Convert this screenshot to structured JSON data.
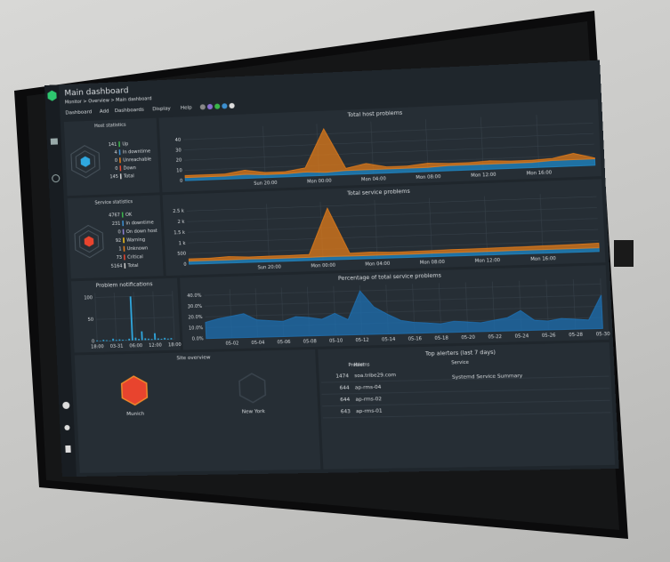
{
  "header": {
    "title": "Main dashboard",
    "breadcrumb": "Monitor > Overview > Main dashboard",
    "menu": [
      "Dashboard",
      "Add",
      "Dashboards",
      "Display",
      "Help"
    ]
  },
  "host_statistics": {
    "title": "Host statistics",
    "rows": [
      {
        "count": 141,
        "label": "Up",
        "color": "#3bb54a"
      },
      {
        "count": 4,
        "label": "In downtime",
        "color": "#3c8fd0"
      },
      {
        "count": 0,
        "label": "Unreachable",
        "color": "#e07b1a"
      },
      {
        "count": 0,
        "label": "Down",
        "color": "#e8442e"
      },
      {
        "count": 145,
        "label": "Total",
        "color": "#cccccc"
      }
    ]
  },
  "service_statistics": {
    "title": "Service statistics",
    "rows": [
      {
        "count": 4767,
        "label": "OK",
        "color": "#3bb54a"
      },
      {
        "count": 231,
        "label": "In downtime",
        "color": "#3c8fd0"
      },
      {
        "count": 0,
        "label": "On down host",
        "color": "#8a7fd0"
      },
      {
        "count": 92,
        "label": "Warning",
        "color": "#f2c21b"
      },
      {
        "count": 1,
        "label": "Unknown",
        "color": "#e07b1a"
      },
      {
        "count": 73,
        "label": "Critical",
        "color": "#e8442e"
      },
      {
        "count": 5164,
        "label": "Total",
        "color": "#cccccc"
      }
    ]
  },
  "chart_data": [
    {
      "type": "area",
      "title": "Total host problems",
      "x": [
        0,
        1.5,
        3,
        4.5,
        6,
        7.5,
        9,
        10.5,
        12,
        13.5,
        15,
        16.5,
        18,
        19.5,
        21,
        22.5,
        24,
        25.5,
        27,
        28.5,
        30
      ],
      "series": [
        {
          "color": "#1e88c8",
          "values": [
            3,
            3,
            3,
            4,
            3,
            3,
            4,
            3,
            4,
            4,
            4,
            4,
            4,
            5,
            5,
            5,
            5,
            5,
            6,
            6,
            6
          ]
        },
        {
          "color": "#e07b1a",
          "values": [
            2,
            2,
            2,
            4,
            2,
            2,
            4,
            42,
            2,
            6,
            2,
            2,
            4,
            2,
            2,
            3,
            2,
            2,
            2,
            6,
            1
          ]
        }
      ],
      "xlim": [
        0,
        30
      ],
      "ylim": [
        0,
        50
      ],
      "yticks": [
        0,
        10,
        20,
        30,
        40
      ],
      "xticks": [
        {
          "value": 6,
          "label": "Sun 20:00"
        },
        {
          "value": 10,
          "label": "Mon 00:00"
        },
        {
          "value": 14,
          "label": "Mon 04:00"
        },
        {
          "value": 18,
          "label": "Mon 08:00"
        },
        {
          "value": 22,
          "label": "Mon 12:00"
        },
        {
          "value": 26,
          "label": "Mon 16:00"
        }
      ],
      "grid": true
    },
    {
      "type": "area",
      "title": "Total service problems",
      "x": [
        0,
        1.5,
        3,
        4.5,
        6,
        7.5,
        9,
        10.5,
        12,
        13.5,
        15,
        16.5,
        18,
        19.5,
        21,
        22.5,
        24,
        25.5,
        27,
        28.5,
        30
      ],
      "series": [
        {
          "color": "#1e88c8",
          "values": [
            150,
            150,
            150,
            160,
            150,
            150,
            150,
            160,
            150,
            150,
            150,
            150,
            160,
            160,
            160,
            160,
            170,
            170,
            170,
            170,
            170
          ]
        },
        {
          "color": "#e07b1a",
          "values": [
            100,
            100,
            150,
            90,
            110,
            110,
            130,
            2240,
            130,
            150,
            110,
            120,
            120,
            140,
            140,
            150,
            150,
            160,
            170,
            190,
            210
          ]
        }
      ],
      "xlim": [
        0,
        30
      ],
      "ylim": [
        0,
        2700
      ],
      "yticks": [
        0,
        500,
        {
          "value": 1000,
          "label": "1 k"
        },
        {
          "value": 1500,
          "label": "1.5 k"
        },
        {
          "value": 2000,
          "label": "2 k"
        },
        {
          "value": 2500,
          "label": "2.5 k"
        }
      ],
      "xticks": [
        {
          "value": 6,
          "label": "Sun 20:00"
        },
        {
          "value": 10,
          "label": "Mon 00:00"
        },
        {
          "value": 14,
          "label": "Mon 04:00"
        },
        {
          "value": 18,
          "label": "Mon 08:00"
        },
        {
          "value": 22,
          "label": "Mon 12:00"
        },
        {
          "value": 26,
          "label": "Mon 16:00"
        }
      ],
      "grid": true
    },
    {
      "type": "bar",
      "title": "Problem notifications",
      "x": [
        0,
        1,
        2,
        3,
        4,
        5,
        6,
        7,
        8,
        9,
        10,
        11,
        12,
        13,
        14,
        15,
        16,
        17,
        18,
        19,
        20,
        21,
        22,
        23
      ],
      "values": [
        2,
        1,
        3,
        2,
        1,
        5,
        2,
        3,
        2,
        1,
        4,
        100,
        6,
        3,
        20,
        4,
        3,
        2,
        15,
        3,
        2,
        4,
        2,
        3
      ],
      "color": "#2fa8e0",
      "xlim": [
        0,
        24
      ],
      "ylim": [
        0,
        110
      ],
      "yticks": [
        0,
        50,
        100
      ],
      "xticks": [
        {
          "value": 0,
          "label": "18:00"
        },
        {
          "value": 6,
          "label": "03-31"
        },
        {
          "value": 12,
          "label": "06:00"
        },
        {
          "value": 18,
          "label": "12:00"
        },
        {
          "value": 24,
          "label": "18:00"
        }
      ],
      "grid": true
    },
    {
      "type": "area",
      "title": "Percentage of total service problems",
      "x": [
        0,
        1,
        2,
        3,
        4,
        5,
        6,
        7,
        8,
        9,
        10,
        11,
        12,
        13,
        14,
        15,
        16,
        17,
        18,
        19,
        20,
        21,
        22,
        23,
        24,
        25,
        26,
        27,
        28,
        29,
        30
      ],
      "series": [
        {
          "color": "#1e6fb0",
          "values": [
            15,
            18,
            20,
            22,
            16,
            15,
            14,
            18,
            17,
            15,
            20,
            14,
            40,
            25,
            18,
            12,
            10,
            9,
            8,
            10,
            9,
            8,
            10,
            12,
            18,
            9,
            8,
            10,
            9,
            8,
            30
          ]
        }
      ],
      "xlim": [
        0,
        30
      ],
      "ylim": [
        0,
        45
      ],
      "yticks": [
        {
          "value": 0,
          "label": "0.0%"
        },
        {
          "value": 10,
          "label": "10.0%"
        },
        {
          "value": 20,
          "label": "20.0%"
        },
        {
          "value": 30,
          "label": "30.0%"
        },
        {
          "value": 40,
          "label": "40.0%"
        }
      ],
      "xticks": [
        {
          "value": 2,
          "label": "05-02"
        },
        {
          "value": 4,
          "label": "05-04"
        },
        {
          "value": 6,
          "label": "05-06"
        },
        {
          "value": 8,
          "label": "05-08"
        },
        {
          "value": 10,
          "label": "05-10"
        },
        {
          "value": 12,
          "label": "05-12"
        },
        {
          "value": 14,
          "label": "05-14"
        },
        {
          "value": 16,
          "label": "05-16"
        },
        {
          "value": 18,
          "label": "05-18"
        },
        {
          "value": 20,
          "label": "05-20"
        },
        {
          "value": 22,
          "label": "05-22"
        },
        {
          "value": 24,
          "label": "05-24"
        },
        {
          "value": 26,
          "label": "05-26"
        },
        {
          "value": 28,
          "label": "05-28"
        },
        {
          "value": 30,
          "label": "05-30"
        }
      ],
      "grid": true
    }
  ],
  "site_overview": {
    "title": "Site overview",
    "sites": [
      "Munich",
      "New York"
    ]
  },
  "top_alerters": {
    "title": "Top alerters (last 7 days)",
    "headers": [
      "Problems",
      "Host",
      "Service"
    ],
    "rows": [
      {
        "problems": 1474,
        "host": "soa.tribe29.com",
        "service": "Systemd Service Summary"
      },
      {
        "problems": 644,
        "host": "ap-rms-04"
      },
      {
        "problems": 644,
        "host": "ap-rms-02"
      },
      {
        "problems": 643,
        "host": "ap-rms-01"
      }
    ]
  }
}
